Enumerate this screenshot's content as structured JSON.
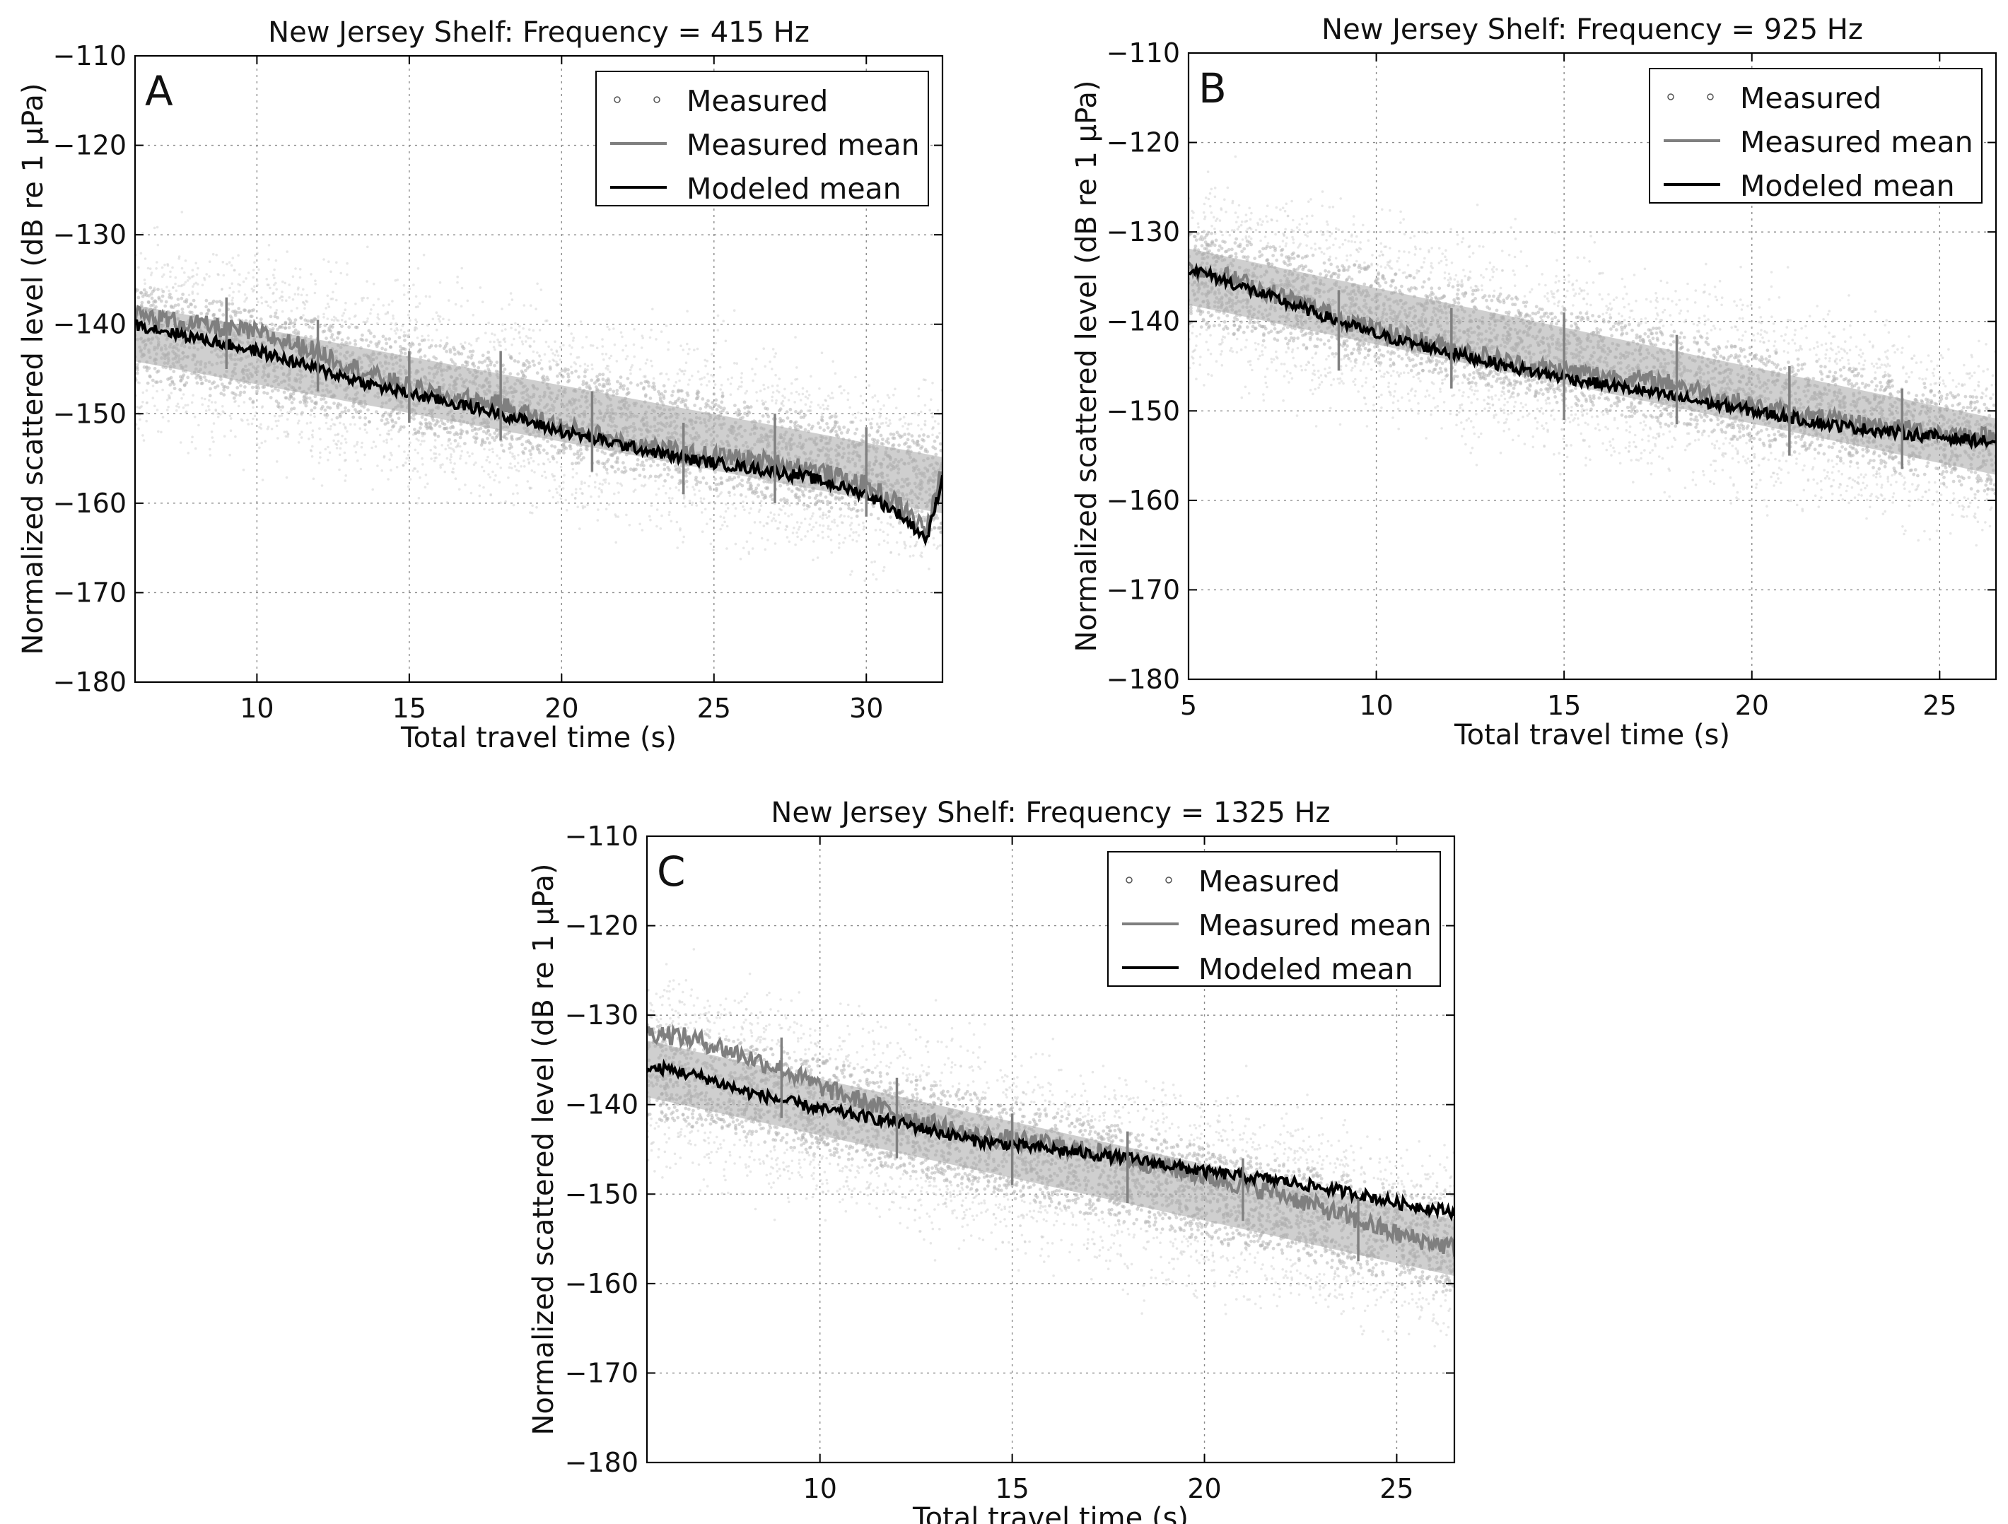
{
  "chart_data": [
    {
      "type": "scatter",
      "panel": "A",
      "title": "New Jersey Shelf: Frequency = 415 Hz",
      "xlabel": "Total travel time (s)",
      "ylabel": "Normalized scattered level (dB re 1 μPa)",
      "xlim": [
        6,
        32.5
      ],
      "ylim": [
        -180,
        -110
      ],
      "xticks": [
        10,
        15,
        20,
        25,
        30
      ],
      "yticks": [
        -110,
        -120,
        -130,
        -140,
        -150,
        -160,
        -170,
        -180
      ],
      "legend": [
        "Measured",
        "Measured mean",
        "Modeled mean"
      ],
      "legend_position": "top-right",
      "grid": true,
      "series": [
        {
          "name": "Measured mean",
          "x": [
            6,
            8,
            10,
            12,
            14,
            16,
            18,
            20,
            22,
            24,
            26,
            28,
            30,
            31,
            32,
            32.5
          ],
          "values": [
            -139,
            -140,
            -141,
            -143,
            -146,
            -148,
            -149,
            -151.5,
            -153,
            -154.5,
            -155,
            -156,
            -158,
            -160,
            -163,
            -156
          ]
        },
        {
          "name": "Modeled mean",
          "x": [
            6,
            8,
            10,
            12,
            14,
            16,
            18,
            20,
            22,
            24,
            26,
            28,
            30,
            31,
            32,
            32.5
          ],
          "values": [
            -140,
            -141.5,
            -143,
            -145,
            -147,
            -148.5,
            -150,
            -152,
            -153.5,
            -155,
            -156,
            -157,
            -159,
            -161,
            -164,
            -157
          ]
        },
        {
          "name": "Error bars",
          "x": [
            9,
            12,
            15,
            18,
            21,
            24,
            27,
            30
          ],
          "values": [
            -141,
            -143.5,
            -147,
            -148,
            -152,
            -155,
            -155,
            -156.5
          ],
          "halfwidth": [
            4,
            4,
            4,
            5,
            4.5,
            4,
            5,
            5
          ]
        }
      ],
      "scatter_band": {
        "x": [
          6,
          32.5
        ],
        "center": [
          -141,
          -158
        ],
        "spread": 9
      }
    },
    {
      "type": "scatter",
      "panel": "B",
      "title": "New Jersey Shelf: Frequency = 925 Hz",
      "xlabel": "Total travel time (s)",
      "ylabel": "Normalized scattered level (dB re 1 μPa)",
      "xlim": [
        5,
        26.5
      ],
      "ylim": [
        -180,
        -110
      ],
      "xticks": [
        5,
        10,
        15,
        20,
        25
      ],
      "yticks": [
        -110,
        -120,
        -130,
        -140,
        -150,
        -160,
        -170,
        -180
      ],
      "legend": [
        "Measured",
        "Measured mean",
        "Modeled mean"
      ],
      "legend_position": "top-right",
      "grid": true,
      "series": [
        {
          "name": "Measured mean",
          "x": [
            5,
            6,
            8,
            10,
            12,
            14,
            16,
            18,
            20,
            22,
            24,
            26.5
          ],
          "values": [
            -134,
            -135,
            -138,
            -141,
            -143,
            -145,
            -146,
            -147,
            -149.5,
            -151,
            -152,
            -153
          ]
        },
        {
          "name": "Modeled mean",
          "x": [
            5,
            6,
            8,
            10,
            12,
            14,
            16,
            18,
            20,
            22,
            24,
            26.5
          ],
          "values": [
            -134,
            -135.5,
            -138.5,
            -141.5,
            -143.5,
            -145.5,
            -147,
            -148.5,
            -150,
            -151.5,
            -152.5,
            -153.5
          ]
        },
        {
          "name": "Error bars",
          "x": [
            9,
            12,
            15,
            18,
            21,
            24
          ],
          "values": [
            -141,
            -143,
            -145,
            -146.5,
            -150,
            -152
          ],
          "halfwidth": [
            4.5,
            4.5,
            6,
            5,
            5,
            4.5
          ]
        }
      ],
      "scatter_band": {
        "x": [
          5,
          26.5
        ],
        "center": [
          -135,
          -154
        ],
        "spread": 9
      }
    },
    {
      "type": "scatter",
      "panel": "C",
      "title": "New Jersey Shelf: Frequency = 1325 Hz",
      "xlabel": "Total travel time (s)",
      "ylabel": "Normalized scattered level (dB re 1 μPa)",
      "xlim": [
        5.5,
        26.5
      ],
      "ylim": [
        -180,
        -110
      ],
      "xticks": [
        10,
        15,
        20,
        25
      ],
      "yticks": [
        -110,
        -120,
        -130,
        -140,
        -150,
        -160,
        -170,
        -180
      ],
      "legend": [
        "Measured",
        "Measured mean",
        "Modeled mean"
      ],
      "legend_position": "top-right",
      "grid": true,
      "series": [
        {
          "name": "Measured mean",
          "x": [
            5.5,
            6,
            7,
            8,
            9,
            10,
            12,
            14,
            16,
            18,
            20,
            22,
            24,
            25,
            26.5
          ],
          "values": [
            -132,
            -132,
            -133,
            -134.5,
            -136,
            -138,
            -141,
            -143.5,
            -144.5,
            -146,
            -148,
            -150,
            -153,
            -154.5,
            -156
          ]
        },
        {
          "name": "Modeled mean",
          "x": [
            5.5,
            6,
            7,
            8,
            9,
            10,
            12,
            14,
            16,
            18,
            20,
            22,
            24,
            25,
            26.5
          ],
          "values": [
            -136,
            -136,
            -137,
            -138.5,
            -139.5,
            -140.5,
            -142,
            -144,
            -145,
            -146,
            -147.5,
            -148.5,
            -150,
            -151,
            -152
          ]
        },
        {
          "name": "Error bars",
          "x": [
            9,
            12,
            15,
            18,
            21,
            24
          ],
          "values": [
            -137,
            -141.5,
            -145,
            -147,
            -149.5,
            -154
          ],
          "halfwidth": [
            4.5,
            4.5,
            4,
            4,
            3.5,
            3.5
          ]
        }
      ],
      "scatter_band": {
        "x": [
          5.5,
          26.5
        ],
        "center": [
          -136,
          -156
        ],
        "spread": 9
      }
    }
  ]
}
